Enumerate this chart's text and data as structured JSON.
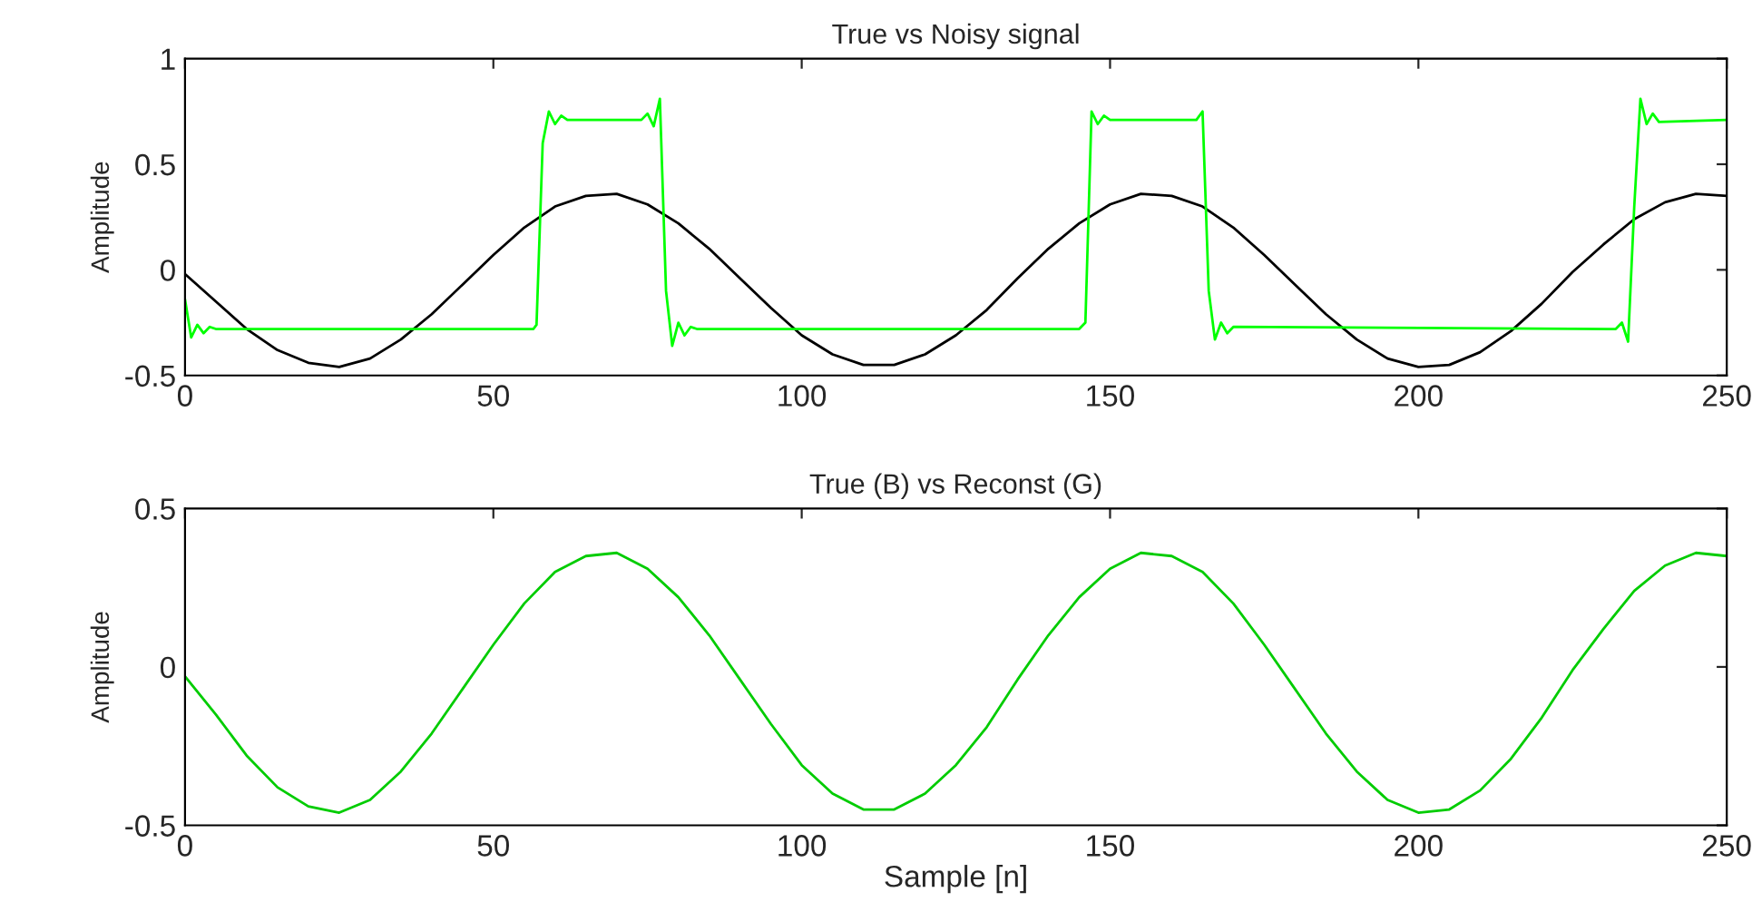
{
  "chart_data": [
    {
      "type": "line",
      "title": "True vs Noisy signal",
      "ylabel": "Amplitude",
      "xlim": [
        0,
        250
      ],
      "xticks": [
        0,
        50,
        100,
        150,
        200,
        250
      ],
      "ylim": [
        -0.5,
        1
      ],
      "yticks": [
        -0.5,
        0,
        0.5,
        1
      ],
      "grid": false,
      "series": [
        {
          "color": "#000000",
          "x": [
            0,
            5,
            10,
            15,
            20,
            25,
            30,
            35,
            40,
            45,
            50,
            55,
            60,
            65,
            70,
            75,
            80,
            85,
            90,
            95,
            100,
            105,
            110,
            115,
            120,
            125,
            130,
            135,
            140,
            145,
            150,
            155,
            160,
            165,
            170,
            175,
            180,
            185,
            190,
            195,
            200,
            205,
            210,
            215,
            220,
            225,
            230,
            235,
            240,
            245,
            250
          ],
          "values": [
            -0.02,
            -0.15,
            -0.28,
            -0.38,
            -0.44,
            -0.46,
            -0.42,
            -0.33,
            -0.21,
            -0.07,
            0.07,
            0.2,
            0.3,
            0.35,
            0.36,
            0.31,
            0.22,
            0.1,
            -0.04,
            -0.18,
            -0.31,
            -0.4,
            -0.45,
            -0.45,
            -0.4,
            -0.31,
            -0.19,
            -0.04,
            0.1,
            0.22,
            0.31,
            0.36,
            0.35,
            0.3,
            0.2,
            0.07,
            -0.07,
            -0.21,
            -0.33,
            -0.42,
            -0.46,
            -0.45,
            -0.39,
            -0.29,
            -0.16,
            -0.01,
            0.12,
            0.24,
            0.32,
            0.36,
            0.35
          ]
        },
        {
          "color": "#00ff00",
          "x": [
            0,
            1,
            2,
            3,
            4,
            5,
            56.5,
            57,
            58,
            59,
            60,
            61,
            62,
            74,
            75,
            76,
            77,
            78,
            79,
            80,
            81,
            82,
            83,
            145,
            146,
            147,
            148,
            149,
            150,
            151,
            164,
            165,
            166,
            167,
            168,
            169,
            170,
            231,
            232,
            233,
            234,
            235,
            236,
            237,
            238,
            239,
            250
          ],
          "values": [
            -0.14,
            -0.32,
            -0.26,
            -0.3,
            -0.27,
            -0.28,
            -0.28,
            -0.26,
            0.6,
            0.75,
            0.69,
            0.73,
            0.71,
            0.71,
            0.74,
            0.68,
            0.81,
            -0.1,
            -0.36,
            -0.25,
            -0.31,
            -0.27,
            -0.28,
            -0.28,
            -0.25,
            0.75,
            0.69,
            0.73,
            0.71,
            0.71,
            0.71,
            0.75,
            -0.1,
            -0.33,
            -0.25,
            -0.3,
            -0.27,
            -0.28,
            -0.28,
            -0.25,
            -0.34,
            0.3,
            0.81,
            0.69,
            0.74,
            0.7,
            0.71
          ]
        }
      ]
    },
    {
      "type": "line",
      "title": "True (B) vs Reconst (G)",
      "xlabel": "Sample [n]",
      "ylabel": "Amplitude",
      "xlim": [
        0,
        250
      ],
      "xticks": [
        0,
        50,
        100,
        150,
        200,
        250
      ],
      "ylim": [
        -0.5,
        0.5
      ],
      "yticks": [
        -0.5,
        0,
        0.5
      ],
      "grid": false,
      "series": [
        {
          "color": "#00cc00",
          "x": [
            0,
            5,
            10,
            15,
            20,
            25,
            30,
            35,
            40,
            45,
            50,
            55,
            60,
            65,
            70,
            75,
            80,
            85,
            90,
            95,
            100,
            105,
            110,
            115,
            120,
            125,
            130,
            135,
            140,
            145,
            150,
            155,
            160,
            165,
            170,
            175,
            180,
            185,
            190,
            195,
            200,
            205,
            210,
            215,
            220,
            225,
            230,
            235,
            240,
            245,
            250
          ],
          "values": [
            -0.03,
            -0.15,
            -0.28,
            -0.38,
            -0.44,
            -0.46,
            -0.42,
            -0.33,
            -0.21,
            -0.07,
            0.07,
            0.2,
            0.3,
            0.35,
            0.36,
            0.31,
            0.22,
            0.1,
            -0.04,
            -0.18,
            -0.31,
            -0.4,
            -0.45,
            -0.45,
            -0.4,
            -0.31,
            -0.19,
            -0.04,
            0.1,
            0.22,
            0.31,
            0.36,
            0.35,
            0.3,
            0.2,
            0.07,
            -0.07,
            -0.21,
            -0.33,
            -0.42,
            -0.46,
            -0.45,
            -0.39,
            -0.29,
            -0.16,
            -0.01,
            0.12,
            0.24,
            0.32,
            0.36,
            0.35
          ]
        }
      ]
    }
  ]
}
